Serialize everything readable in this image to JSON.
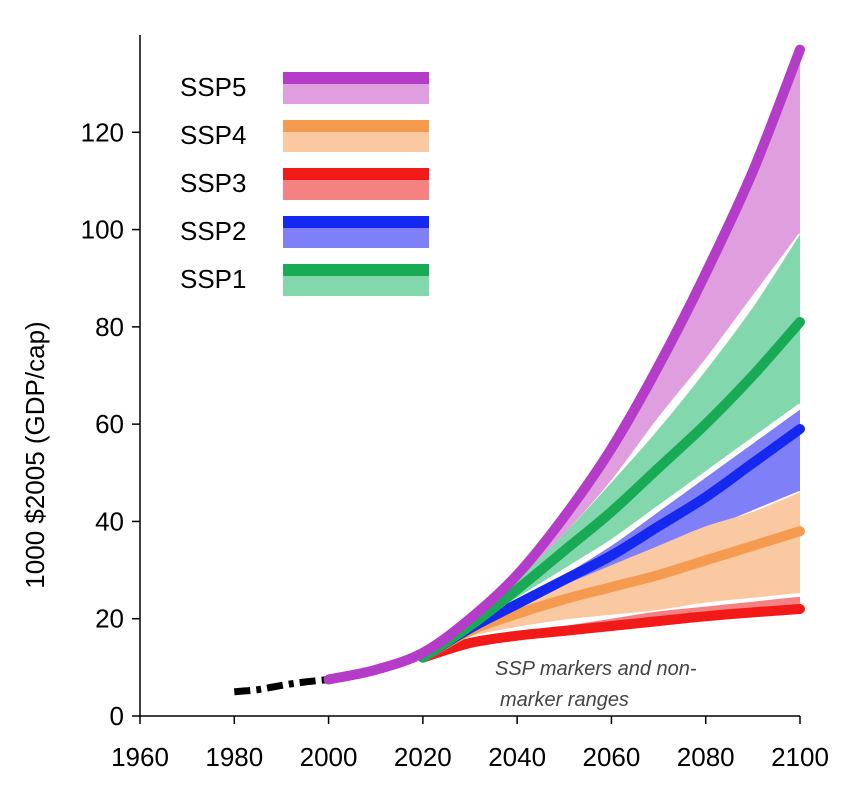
{
  "chart_data": {
    "type": "line",
    "title": "",
    "xlabel": "",
    "ylabel": "1000 $2005 (GDP/cap)",
    "xlim": [
      1960,
      2100
    ],
    "ylim": [
      0,
      140
    ],
    "x_ticks": [
      "1960",
      "1980",
      "2000",
      "2020",
      "2040",
      "2060",
      "2080",
      "2100"
    ],
    "y_ticks": [
      "0",
      "20",
      "40",
      "60",
      "80",
      "100",
      "120"
    ],
    "grid": false,
    "legend_position": "top-left",
    "annotation": [
      "SSP markers and  non-",
      "marker ranges"
    ],
    "history": {
      "style": "dash-dot",
      "color": "#000000",
      "x": [
        1980,
        1985,
        1990,
        1995,
        2000
      ],
      "y": [
        5.0,
        5.4,
        6.3,
        7.0,
        7.5
      ]
    },
    "series": [
      {
        "name": "SSP5",
        "color": "#b43cc8",
        "band_color": "#df9fdf",
        "x": [
          2000,
          2010,
          2020,
          2030,
          2040,
          2050,
          2060,
          2070,
          2080,
          2090,
          2100
        ],
        "y": [
          7.5,
          9.5,
          13.0,
          20.0,
          29.0,
          41.0,
          55.0,
          72.0,
          91.0,
          112.0,
          137.0
        ],
        "band_low": [
          7.5,
          9.5,
          13.0,
          19.5,
          27.0,
          37.0,
          48.0,
          61.0,
          73.0,
          86.0,
          99.0
        ],
        "band_high": [
          7.5,
          9.5,
          13.0,
          20.0,
          29.0,
          41.0,
          55.0,
          72.0,
          91.0,
          112.0,
          137.0
        ]
      },
      {
        "name": "SSP4",
        "color": "#f59b50",
        "band_color": "#fac9a1",
        "x": [
          2020,
          2030,
          2040,
          2050,
          2060,
          2070,
          2080,
          2090,
          2100
        ],
        "y": [
          12.0,
          17.5,
          21.0,
          24.0,
          26.5,
          29.0,
          32.0,
          35.0,
          38.0
        ],
        "band_low": [
          12.0,
          16.0,
          18.0,
          19.5,
          20.5,
          21.5,
          23.0,
          24.0,
          25.0
        ],
        "band_high": [
          12.0,
          18.5,
          23.0,
          27.0,
          31.0,
          35.0,
          39.0,
          42.0,
          46.0
        ]
      },
      {
        "name": "SSP3",
        "color": "#f21919",
        "band_color": "#f58282",
        "x": [
          2020,
          2030,
          2040,
          2050,
          2060,
          2070,
          2080,
          2090,
          2100
        ],
        "y": [
          12.0,
          15.0,
          16.5,
          17.5,
          18.5,
          19.5,
          20.5,
          21.3,
          22.0
        ],
        "band_low": [
          12.0,
          14.5,
          15.5,
          16.5,
          17.5,
          18.5,
          19.5,
          20.2,
          21.0
        ],
        "band_high": [
          12.0,
          15.5,
          17.0,
          18.5,
          20.0,
          21.5,
          22.5,
          23.5,
          24.5
        ]
      },
      {
        "name": "SSP2",
        "color": "#1428f0",
        "band_color": "#7f7ff7",
        "x": [
          2020,
          2030,
          2040,
          2050,
          2060,
          2070,
          2080,
          2090,
          2100
        ],
        "y": [
          12.0,
          18.0,
          23.0,
          28.0,
          33.0,
          39.0,
          45.0,
          52.0,
          59.0
        ],
        "band_low": [
          12.0,
          17.5,
          21.5,
          25.5,
          29.5,
          34.0,
          38.0,
          42.0,
          46.0
        ],
        "band_high": [
          12.0,
          18.5,
          23.5,
          29.0,
          35.0,
          42.0,
          49.0,
          56.0,
          63.0
        ]
      },
      {
        "name": "SSP1",
        "color": "#19aa55",
        "band_color": "#82d7ac",
        "x": [
          2020,
          2030,
          2040,
          2050,
          2060,
          2070,
          2080,
          2090,
          2100
        ],
        "y": [
          12.0,
          18.5,
          26.0,
          34.0,
          42.0,
          51.0,
          60.0,
          70.0,
          81.0
        ],
        "band_low": [
          12.0,
          18.0,
          24.0,
          30.0,
          36.0,
          43.0,
          50.0,
          57.0,
          64.0
        ],
        "band_high": [
          12.0,
          19.5,
          28.0,
          37.5,
          48.0,
          59.0,
          71.0,
          84.0,
          99.0
        ]
      }
    ]
  }
}
